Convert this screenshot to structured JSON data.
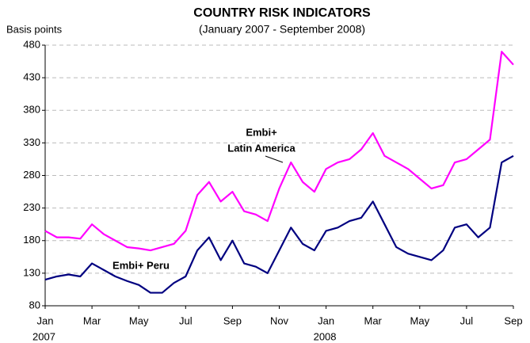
{
  "chart_data": {
    "type": "line",
    "title": "COUNTRY RISK INDICATORS",
    "subtitle": "(January 2007 - September 2008)",
    "y_label": "Basis points",
    "categories": [
      "Jan",
      null,
      null,
      null,
      "Mar",
      null,
      null,
      null,
      "May",
      null,
      null,
      null,
      "Jul",
      null,
      null,
      null,
      "Sep",
      null,
      null,
      null,
      "Nov",
      null,
      null,
      null,
      "Jan",
      null,
      null,
      null,
      "Mar",
      null,
      null,
      null,
      "May",
      null,
      null,
      null,
      "Jul",
      null,
      null,
      null,
      "Sep"
    ],
    "years": [
      "2007",
      "2008"
    ],
    "series": [
      {
        "name": "Embi+ Latin America",
        "color": "#ff00ff",
        "values": [
          195,
          185,
          185,
          183,
          205,
          190,
          180,
          170,
          168,
          165,
          170,
          175,
          195,
          250,
          270,
          240,
          255,
          225,
          220,
          210,
          260,
          300,
          270,
          255,
          290,
          300,
          305,
          320,
          345,
          310,
          300,
          290,
          275,
          260,
          265,
          300,
          305,
          320,
          335,
          470,
          450
        ]
      },
      {
        "name": "Embi+ Peru",
        "color": "#000080",
        "values": [
          120,
          125,
          128,
          125,
          145,
          135,
          125,
          118,
          112,
          100,
          100,
          115,
          125,
          165,
          185,
          150,
          180,
          145,
          140,
          130,
          165,
          200,
          175,
          165,
          195,
          200,
          210,
          215,
          240,
          205,
          170,
          160,
          155,
          150,
          165,
          200,
          205,
          185,
          200,
          300,
          310
        ]
      }
    ],
    "annotations": [
      "Embi+",
      "Latin America",
      "Embi+ Peru"
    ],
    "ylim": [
      80,
      480
    ],
    "yticks": [
      80,
      130,
      180,
      230,
      280,
      330,
      380,
      430,
      480
    ],
    "grid": true
  }
}
